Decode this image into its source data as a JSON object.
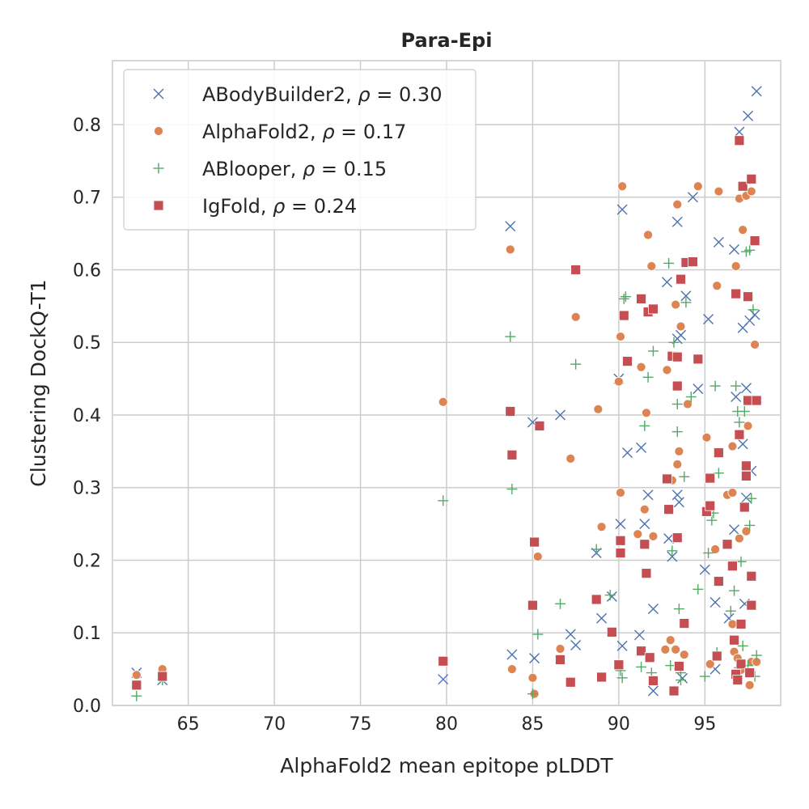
{
  "chart_data": {
    "type": "scatter",
    "title": "Para-Epi",
    "xlabel": "AlphaFold2 mean epitope pLDDT",
    "ylabel": "Clustering DockQ-T1",
    "xlim": [
      60.6,
      99.4
    ],
    "ylim": [
      0.0,
      0.888
    ],
    "xticks": [
      65,
      70,
      75,
      80,
      85,
      90,
      95
    ],
    "xtick_labels": [
      "65",
      "70",
      "75",
      "80",
      "85",
      "90",
      "95"
    ],
    "yticks": [
      0.0,
      0.1,
      0.2,
      0.3,
      0.4,
      0.5,
      0.6,
      0.7,
      0.8
    ],
    "ytick_labels": [
      "0.0",
      "0.1",
      "0.2",
      "0.3",
      "0.4",
      "0.5",
      "0.6",
      "0.7",
      "0.8"
    ],
    "grid": true,
    "legend_position": "top-left",
    "series": [
      {
        "name": "ABodyBuilder2, ρ = 0.30",
        "legend_name": "ABodyBuilder2, ",
        "legend_rho": "0.30",
        "marker": "x",
        "color": "#4c72b0",
        "points": [
          [
            62.0,
            0.045
          ],
          [
            63.5,
            0.035
          ],
          [
            79.8,
            0.036
          ],
          [
            83.7,
            0.66
          ],
          [
            83.8,
            0.07
          ],
          [
            85.0,
            0.39
          ],
          [
            85.1,
            0.065
          ],
          [
            86.6,
            0.4
          ],
          [
            87.2,
            0.098
          ],
          [
            87.5,
            0.083
          ],
          [
            88.7,
            0.21
          ],
          [
            89.0,
            0.12
          ],
          [
            89.6,
            0.15
          ],
          [
            90.0,
            0.45
          ],
          [
            90.1,
            0.25
          ],
          [
            90.2,
            0.082
          ],
          [
            90.2,
            0.683
          ],
          [
            90.5,
            0.348
          ],
          [
            91.2,
            0.097
          ],
          [
            91.3,
            0.355
          ],
          [
            91.5,
            0.25
          ],
          [
            91.7,
            0.29
          ],
          [
            92.0,
            0.133
          ],
          [
            92.0,
            0.02
          ],
          [
            92.8,
            0.583
          ],
          [
            92.9,
            0.23
          ],
          [
            93.1,
            0.205
          ],
          [
            93.4,
            0.29
          ],
          [
            93.5,
            0.28
          ],
          [
            93.4,
            0.505
          ],
          [
            93.6,
            0.51
          ],
          [
            93.4,
            0.666
          ],
          [
            93.7,
            0.0375
          ],
          [
            93.9,
            0.564
          ],
          [
            94.3,
            0.7
          ],
          [
            94.6,
            0.436
          ],
          [
            95.0,
            0.187
          ],
          [
            95.2,
            0.532
          ],
          [
            95.6,
            0.05
          ],
          [
            95.6,
            0.142
          ],
          [
            95.8,
            0.638
          ],
          [
            96.4,
            0.12
          ],
          [
            96.7,
            0.242
          ],
          [
            96.7,
            0.628
          ],
          [
            96.8,
            0.425
          ],
          [
            97.0,
            0.79
          ],
          [
            97.2,
            0.52
          ],
          [
            97.2,
            0.36
          ],
          [
            97.3,
            0.14
          ],
          [
            97.4,
            0.437
          ],
          [
            97.4,
            0.286
          ],
          [
            97.5,
            0.812
          ],
          [
            97.6,
            0.53
          ],
          [
            97.7,
            0.323
          ],
          [
            97.9,
            0.538
          ],
          [
            98.0,
            0.846
          ]
        ]
      },
      {
        "name": "AlphaFold2, ρ = 0.17",
        "legend_name": "AlphaFold2, ",
        "legend_rho": "0.17",
        "marker": "circle",
        "color": "#dd8452",
        "points": [
          [
            62.0,
            0.042
          ],
          [
            63.5,
            0.05
          ],
          [
            79.8,
            0.418
          ],
          [
            83.7,
            0.628
          ],
          [
            83.8,
            0.05
          ],
          [
            85.0,
            0.038
          ],
          [
            85.1,
            0.016
          ],
          [
            85.3,
            0.205
          ],
          [
            86.6,
            0.078
          ],
          [
            87.2,
            0.34
          ],
          [
            87.5,
            0.535
          ],
          [
            88.8,
            0.408
          ],
          [
            89.0,
            0.246
          ],
          [
            89.6,
            0.1
          ],
          [
            90.0,
            0.446
          ],
          [
            90.1,
            0.508
          ],
          [
            90.1,
            0.293
          ],
          [
            90.2,
            0.715
          ],
          [
            91.1,
            0.236
          ],
          [
            91.3,
            0.466
          ],
          [
            91.5,
            0.27
          ],
          [
            91.6,
            0.403
          ],
          [
            91.7,
            0.648
          ],
          [
            91.9,
            0.605
          ],
          [
            92.0,
            0.233
          ],
          [
            92.7,
            0.077
          ],
          [
            92.8,
            0.462
          ],
          [
            93.0,
            0.09
          ],
          [
            93.1,
            0.31
          ],
          [
            93.3,
            0.552
          ],
          [
            93.3,
            0.077
          ],
          [
            93.4,
            0.332
          ],
          [
            93.4,
            0.69
          ],
          [
            93.5,
            0.35
          ],
          [
            93.6,
            0.522
          ],
          [
            93.8,
            0.07
          ],
          [
            94.0,
            0.415
          ],
          [
            94.6,
            0.715
          ],
          [
            95.1,
            0.369
          ],
          [
            95.3,
            0.057
          ],
          [
            95.6,
            0.215
          ],
          [
            95.7,
            0.578
          ],
          [
            95.8,
            0.708
          ],
          [
            96.3,
            0.29
          ],
          [
            96.6,
            0.293
          ],
          [
            96.6,
            0.357
          ],
          [
            96.6,
            0.112
          ],
          [
            96.7,
            0.074
          ],
          [
            96.8,
            0.605
          ],
          [
            96.9,
            0.065
          ],
          [
            97.0,
            0.698
          ],
          [
            97.0,
            0.23
          ],
          [
            97.1,
            0.049
          ],
          [
            97.2,
            0.655
          ],
          [
            97.4,
            0.24
          ],
          [
            97.4,
            0.702
          ],
          [
            97.5,
            0.385
          ],
          [
            97.6,
            0.028
          ],
          [
            97.7,
            0.708
          ],
          [
            97.7,
            0.06
          ],
          [
            97.9,
            0.497
          ],
          [
            98.0,
            0.06
          ]
        ]
      },
      {
        "name": "ABlooper, ρ = 0.15",
        "legend_name": "ABlooper, ",
        "legend_rho": "0.15",
        "marker": "plus",
        "color": "#55a868",
        "points": [
          [
            62.0,
            0.013
          ],
          [
            63.5,
            0.035
          ],
          [
            79.8,
            0.282
          ],
          [
            83.7,
            0.508
          ],
          [
            83.8,
            0.298
          ],
          [
            85.0,
            0.016
          ],
          [
            85.3,
            0.098
          ],
          [
            86.6,
            0.14
          ],
          [
            87.5,
            0.47
          ],
          [
            88.7,
            0.215
          ],
          [
            89.5,
            0.152
          ],
          [
            90.1,
            0.048
          ],
          [
            90.2,
            0.038
          ],
          [
            90.3,
            0.56
          ],
          [
            90.4,
            0.563
          ],
          [
            91.3,
            0.053
          ],
          [
            91.5,
            0.385
          ],
          [
            91.7,
            0.452
          ],
          [
            91.9,
            0.045
          ],
          [
            92.0,
            0.488
          ],
          [
            92.9,
            0.609
          ],
          [
            93.0,
            0.055
          ],
          [
            93.1,
            0.213
          ],
          [
            93.2,
            0.5
          ],
          [
            93.4,
            0.415
          ],
          [
            93.4,
            0.377
          ],
          [
            93.5,
            0.133
          ],
          [
            93.6,
            0.045
          ],
          [
            93.6,
            0.035
          ],
          [
            93.8,
            0.315
          ],
          [
            93.9,
            0.555
          ],
          [
            94.2,
            0.425
          ],
          [
            94.6,
            0.16
          ],
          [
            95.0,
            0.04
          ],
          [
            95.2,
            0.21
          ],
          [
            95.4,
            0.255
          ],
          [
            95.5,
            0.265
          ],
          [
            95.6,
            0.44
          ],
          [
            95.7,
            0.073
          ],
          [
            95.8,
            0.32
          ],
          [
            96.5,
            0.13
          ],
          [
            96.7,
            0.158
          ],
          [
            96.8,
            0.44
          ],
          [
            96.9,
            0.405
          ],
          [
            97.0,
            0.39
          ],
          [
            97.0,
            0.052
          ],
          [
            97.1,
            0.198
          ],
          [
            97.2,
            0.082
          ],
          [
            97.3,
            0.405
          ],
          [
            97.4,
            0.625
          ],
          [
            97.5,
            0.055
          ],
          [
            97.6,
            0.248
          ],
          [
            97.6,
            0.627
          ],
          [
            97.7,
            0.285
          ],
          [
            97.8,
            0.545
          ],
          [
            97.9,
            0.04
          ],
          [
            98.0,
            0.069
          ]
        ]
      },
      {
        "name": "IgFold, ρ = 0.24",
        "legend_name": "IgFold, ",
        "legend_rho": "0.24",
        "marker": "square",
        "color": "#c44e52",
        "points": [
          [
            62.0,
            0.028
          ],
          [
            63.5,
            0.04
          ],
          [
            79.8,
            0.061
          ],
          [
            83.7,
            0.405
          ],
          [
            83.8,
            0.345
          ],
          [
            85.0,
            0.138
          ],
          [
            85.1,
            0.225
          ],
          [
            85.4,
            0.385
          ],
          [
            86.6,
            0.063
          ],
          [
            87.2,
            0.032
          ],
          [
            87.5,
            0.6
          ],
          [
            88.7,
            0.146
          ],
          [
            89.0,
            0.039
          ],
          [
            89.6,
            0.101
          ],
          [
            90.0,
            0.056
          ],
          [
            90.1,
            0.21
          ],
          [
            90.1,
            0.227
          ],
          [
            90.3,
            0.537
          ],
          [
            90.5,
            0.474
          ],
          [
            91.3,
            0.075
          ],
          [
            91.3,
            0.56
          ],
          [
            91.5,
            0.222
          ],
          [
            91.6,
            0.182
          ],
          [
            91.7,
            0.542
          ],
          [
            91.8,
            0.066
          ],
          [
            92.0,
            0.546
          ],
          [
            92.0,
            0.034
          ],
          [
            92.8,
            0.312
          ],
          [
            92.9,
            0.27
          ],
          [
            93.1,
            0.481
          ],
          [
            93.2,
            0.02
          ],
          [
            93.4,
            0.44
          ],
          [
            93.4,
            0.231
          ],
          [
            93.4,
            0.48
          ],
          [
            93.5,
            0.054
          ],
          [
            93.6,
            0.587
          ],
          [
            93.8,
            0.113
          ],
          [
            93.9,
            0.61
          ],
          [
            94.3,
            0.611
          ],
          [
            94.6,
            0.477
          ],
          [
            95.1,
            0.267
          ],
          [
            95.3,
            0.313
          ],
          [
            95.3,
            0.275
          ],
          [
            95.8,
            0.348
          ],
          [
            95.7,
            0.068
          ],
          [
            95.8,
            0.171
          ],
          [
            96.3,
            0.222
          ],
          [
            96.6,
            0.192
          ],
          [
            96.7,
            0.09
          ],
          [
            96.8,
            0.043
          ],
          [
            96.8,
            0.567
          ],
          [
            96.9,
            0.035
          ],
          [
            97.0,
            0.778
          ],
          [
            97.0,
            0.373
          ],
          [
            97.1,
            0.112
          ],
          [
            97.1,
            0.057
          ],
          [
            97.2,
            0.715
          ],
          [
            97.3,
            0.273
          ],
          [
            97.4,
            0.33
          ],
          [
            97.4,
            0.316
          ],
          [
            97.5,
            0.563
          ],
          [
            97.5,
            0.42
          ],
          [
            97.6,
            0.045
          ],
          [
            97.7,
            0.178
          ],
          [
            97.7,
            0.138
          ],
          [
            97.7,
            0.725
          ],
          [
            97.9,
            0.64
          ],
          [
            98.0,
            0.42
          ]
        ]
      }
    ]
  }
}
